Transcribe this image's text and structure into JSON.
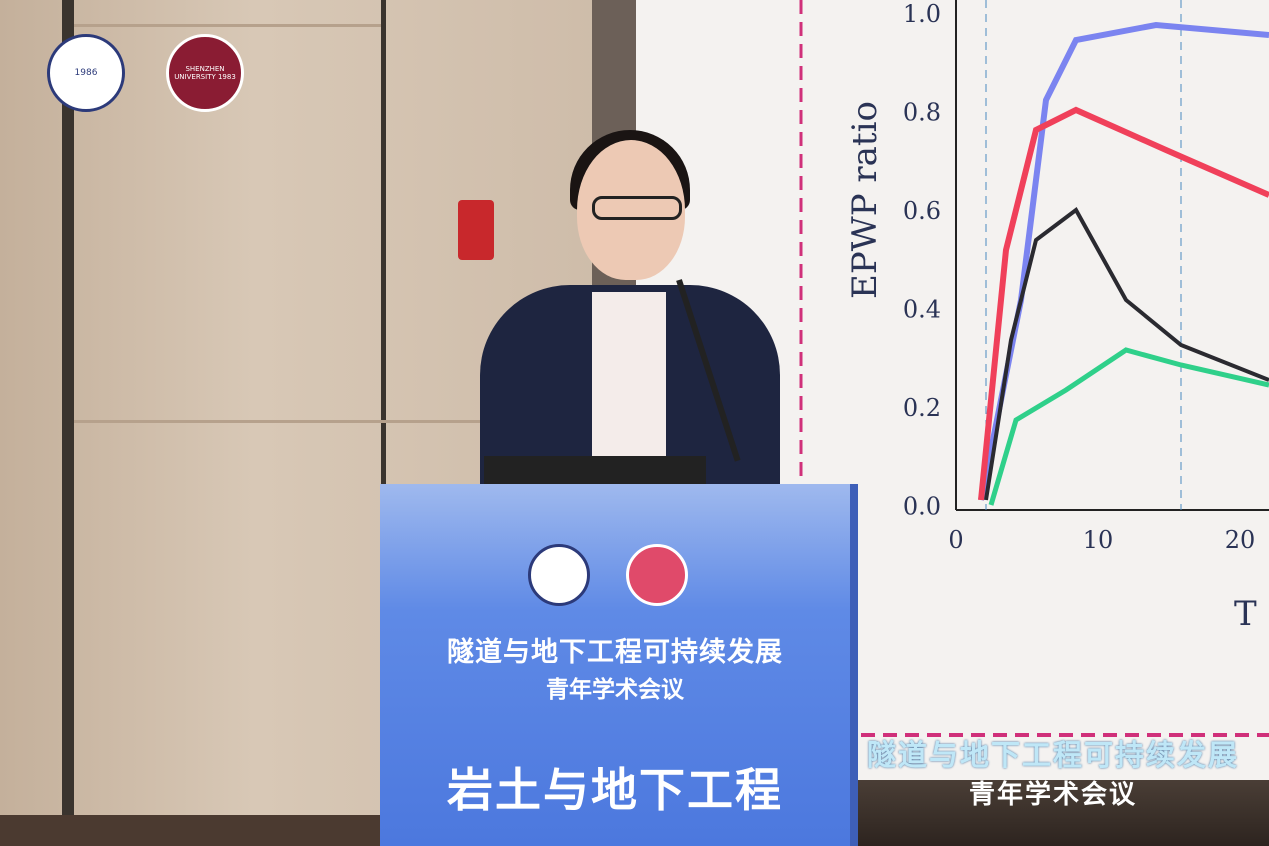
{
  "logos": {
    "left_logo": "1986",
    "right_logo": "SHENZHEN UNIVERSITY 1983"
  },
  "podium": {
    "title_line1": "隧道与地下工程可持续发展",
    "title_line2": "青年学术会议",
    "session": "岩土与地下工程"
  },
  "screen": {
    "caption_line1": "隧道与地下工程可持续发展",
    "caption_line2": "青年学术会议",
    "chart": {
      "ylabel": "EPWP ratio",
      "xlabel": "T",
      "yticks": [
        "1.0",
        "0.8",
        "0.6",
        "0.4",
        "0.2",
        "0.0"
      ],
      "xticks": [
        "0",
        "10",
        "20"
      ],
      "series_colors": [
        "#7b84f0",
        "#f0405a",
        "#2a2a30",
        "#2fd08a"
      ]
    }
  }
}
